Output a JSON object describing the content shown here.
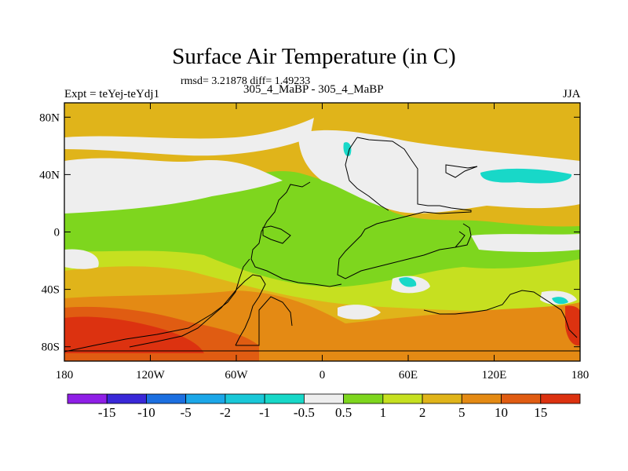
{
  "title": "Surface Air Temperature (in C)",
  "stats": "rmsd= 3.21878 diff= 1.49233",
  "experiment": "Expt = teYej-teYdj1",
  "subtitle": "305_4_MaBP - 305_4_MaBP",
  "season": "JJA",
  "map": {
    "lat_ticks": [
      "80N",
      "40N",
      "0",
      "40S",
      "80S"
    ],
    "lon_ticks": [
      "180",
      "120W",
      "60W",
      "0",
      "60E",
      "120E",
      "180"
    ]
  },
  "colorbar": {
    "labels": [
      "-15",
      "-10",
      "-5",
      "-2",
      "-1",
      "-0.5",
      "0.5",
      "1",
      "2",
      "5",
      "10",
      "15"
    ],
    "colors": [
      "#8f1fe6",
      "#3a28d8",
      "#1c6fe0",
      "#1ca7e8",
      "#1ac8d8",
      "#18d8c8",
      "#eeeeee",
      "#7ed61e",
      "#c6e020",
      "#e0b41a",
      "#e48a14",
      "#e05c12",
      "#dc3210"
    ]
  }
}
